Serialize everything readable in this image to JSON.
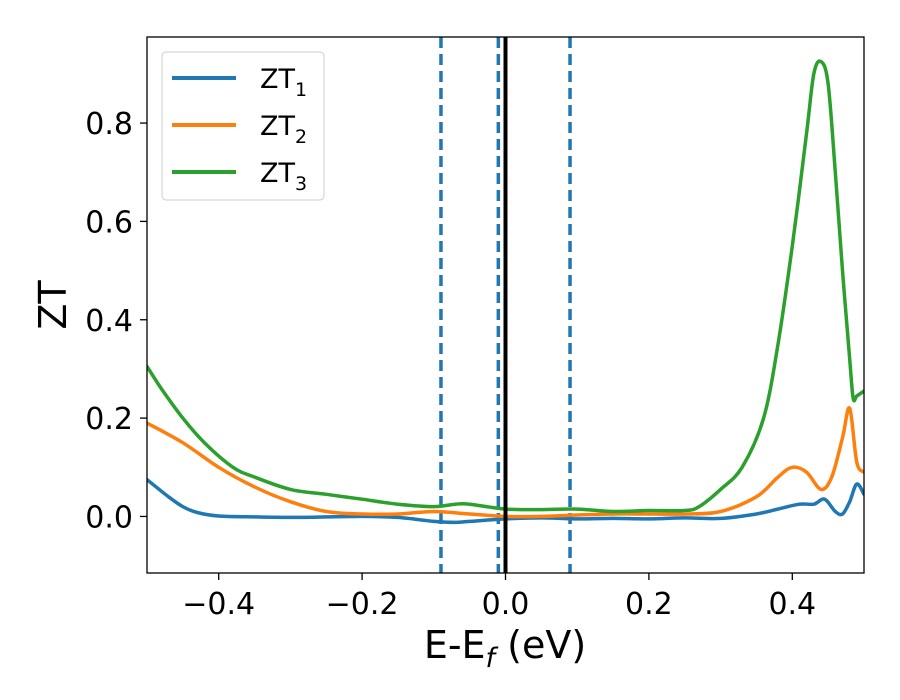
{
  "chart_data": {
    "type": "line",
    "title": "",
    "xlabel_main": "E-E",
    "xlabel_sub": "f",
    "xlabel_unit": " (eV)",
    "ylabel": "ZT",
    "xlim": [
      -0.5,
      0.5
    ],
    "ylim": [
      -0.115,
      0.975
    ],
    "xticks": [
      -0.4,
      -0.2,
      0.0,
      0.2,
      0.4
    ],
    "xtick_labels": [
      "−0.4",
      "−0.2",
      "0.0",
      "0.2",
      "0.4"
    ],
    "yticks": [
      0.0,
      0.2,
      0.4,
      0.6,
      0.8
    ],
    "ytick_labels": [
      "0.0",
      "0.2",
      "0.4",
      "0.6",
      "0.8"
    ],
    "grid": false,
    "legend_position": "top-left",
    "vlines": [
      {
        "x": -0.09,
        "style": "dashed",
        "color": "#1f77b4"
      },
      {
        "x": -0.01,
        "style": "dashed",
        "color": "#1f77b4"
      },
      {
        "x": 0.09,
        "style": "dashed",
        "color": "#1f77b4"
      },
      {
        "x": 0.0,
        "style": "solid",
        "color": "#000000"
      }
    ],
    "series": [
      {
        "name": "ZT",
        "sub": "1",
        "color": "#1f77b4",
        "x": [
          -0.5,
          -0.47,
          -0.45,
          -0.43,
          -0.4,
          -0.35,
          -0.3,
          -0.25,
          -0.2,
          -0.15,
          -0.1,
          -0.07,
          -0.05,
          0.0,
          0.05,
          0.1,
          0.15,
          0.2,
          0.25,
          0.3,
          0.35,
          0.38,
          0.41,
          0.43,
          0.445,
          0.46,
          0.47,
          0.48,
          0.49,
          0.5
        ],
        "y": [
          0.075,
          0.04,
          0.02,
          0.008,
          0.001,
          -0.001,
          -0.002,
          -0.001,
          0.0,
          -0.002,
          -0.01,
          -0.012,
          -0.01,
          -0.005,
          -0.003,
          -0.005,
          -0.004,
          -0.005,
          -0.003,
          -0.004,
          0.005,
          0.015,
          0.025,
          0.025,
          0.035,
          0.01,
          0.005,
          0.03,
          0.066,
          0.045
        ]
      },
      {
        "name": "ZT",
        "sub": "2",
        "color": "#ff7f0e",
        "x": [
          -0.5,
          -0.45,
          -0.4,
          -0.35,
          -0.3,
          -0.25,
          -0.2,
          -0.15,
          -0.1,
          -0.05,
          0.0,
          0.05,
          0.1,
          0.15,
          0.2,
          0.25,
          0.3,
          0.35,
          0.38,
          0.4,
          0.42,
          0.44,
          0.455,
          0.47,
          0.48,
          0.49,
          0.5
        ],
        "y": [
          0.19,
          0.15,
          0.1,
          0.06,
          0.03,
          0.01,
          0.005,
          0.005,
          0.01,
          0.005,
          0.0,
          0.0,
          0.003,
          0.005,
          0.005,
          0.005,
          0.01,
          0.04,
          0.08,
          0.1,
          0.09,
          0.055,
          0.08,
          0.16,
          0.22,
          0.11,
          0.09
        ]
      },
      {
        "name": "ZT",
        "sub": "3",
        "color": "#2ca02c",
        "x": [
          -0.5,
          -0.48,
          -0.45,
          -0.42,
          -0.38,
          -0.35,
          -0.3,
          -0.25,
          -0.2,
          -0.15,
          -0.1,
          -0.07,
          -0.05,
          0.0,
          0.05,
          0.1,
          0.15,
          0.2,
          0.25,
          0.27,
          0.3,
          0.33,
          0.36,
          0.38,
          0.4,
          0.42,
          0.43,
          0.44,
          0.45,
          0.46,
          0.47,
          0.48,
          0.485,
          0.49,
          0.5
        ],
        "y": [
          0.305,
          0.26,
          0.2,
          0.15,
          0.1,
          0.08,
          0.055,
          0.045,
          0.035,
          0.025,
          0.02,
          0.025,
          0.025,
          0.015,
          0.014,
          0.015,
          0.01,
          0.012,
          0.012,
          0.02,
          0.055,
          0.1,
          0.2,
          0.35,
          0.55,
          0.78,
          0.9,
          0.925,
          0.88,
          0.7,
          0.5,
          0.32,
          0.24,
          0.245,
          0.255
        ]
      }
    ]
  }
}
